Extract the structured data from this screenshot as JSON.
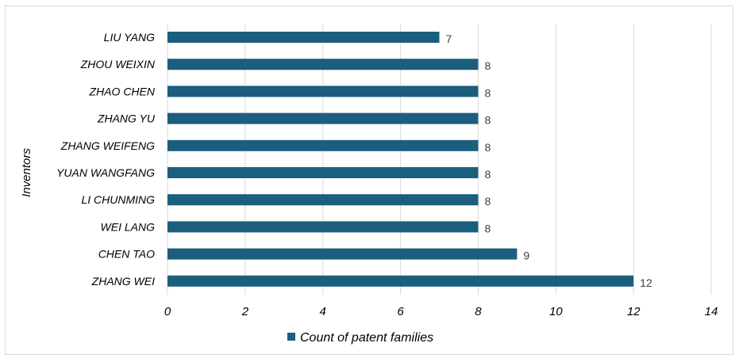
{
  "chart_data": {
    "type": "bar",
    "orientation": "horizontal",
    "ylabel": "Inventors",
    "categories": [
      "LIU YANG",
      "ZHOU WEIXIN",
      "ZHAO CHEN",
      "ZHANG YU",
      "ZHANG WEIFENG",
      "YUAN WANGFANG",
      "LI CHUNMING",
      "WEI LANG",
      "CHEN TAO",
      "ZHANG WEI"
    ],
    "series": [
      {
        "name": "Count of patent families",
        "values": [
          7,
          8,
          8,
          8,
          8,
          8,
          8,
          8,
          9,
          12
        ],
        "color": "#1b5e7e"
      }
    ],
    "xlim": [
      0,
      14
    ],
    "xticks": [
      0,
      2,
      4,
      6,
      8,
      10,
      12,
      14
    ],
    "grid": true,
    "legend_position": "bottom"
  }
}
